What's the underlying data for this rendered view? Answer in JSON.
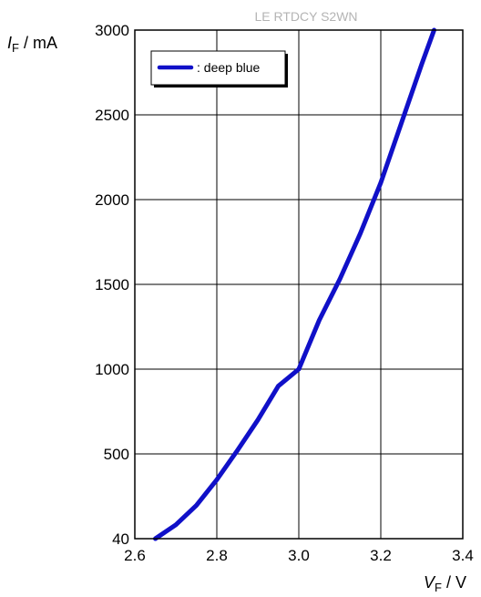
{
  "watermark": "LE RTDCY S2WN",
  "chart_data": {
    "type": "line",
    "xlabel": {
      "symbol": "V",
      "subscript": "F",
      "unit": " / V"
    },
    "ylabel": {
      "symbol": "I",
      "subscript": "F",
      "unit": " / mA"
    },
    "xlim": [
      2.6,
      3.4
    ],
    "x_ticks": [
      2.6,
      2.8,
      3.0,
      3.2,
      3.4
    ],
    "x_tick_labels": [
      "2.6",
      "2.8",
      "3.0",
      "3.2",
      "3.4"
    ],
    "y_ticks": [
      40,
      500,
      1000,
      1500,
      2000,
      2500,
      3000
    ],
    "y_tick_labels": [
      "40",
      "500",
      "1000",
      "1500",
      "2000",
      "2500",
      "3000"
    ],
    "ylim": [
      40,
      3000
    ],
    "grid": true,
    "legend_position": "top-left",
    "series": [
      {
        "name": ": deep blue",
        "color": "#1010c8",
        "x": [
          2.65,
          2.7,
          2.75,
          2.8,
          2.85,
          2.9,
          2.95,
          3.0,
          3.05,
          3.1,
          3.15,
          3.2,
          3.25,
          3.3,
          3.33
        ],
        "y": [
          40,
          115,
          220,
          360,
          520,
          700,
          900,
          1000,
          1290,
          1530,
          1800,
          2100,
          2450,
          2800,
          3000
        ]
      }
    ]
  }
}
